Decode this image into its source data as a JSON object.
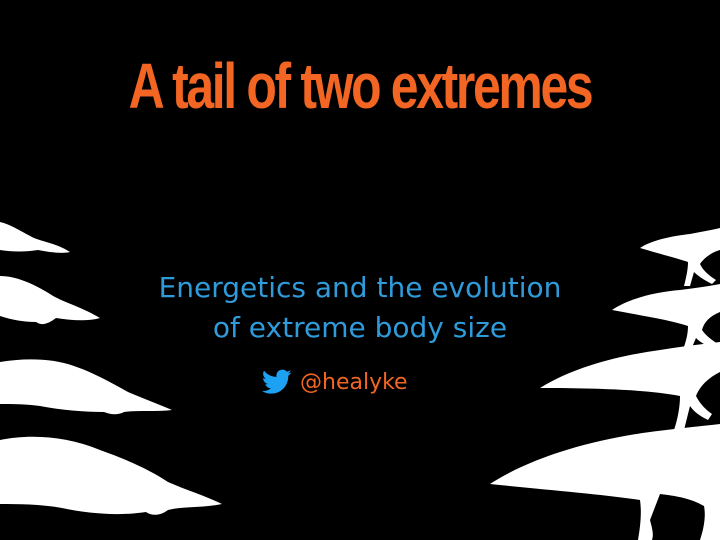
{
  "slide": {
    "title": "A tail of two extremes",
    "subtitle_line1": "Energetics and the evolution",
    "subtitle_line2": "of extreme body size",
    "handle": "@healyke"
  },
  "colors": {
    "background": "#000000",
    "title": "#F26522",
    "subtitle": "#2F9BDB",
    "handle": "#F26522",
    "twitter_bird": "#1DA1F2",
    "silhouettes": "#FFFFFF"
  },
  "icons": {
    "twitter": "twitter-bird-icon",
    "left_group": "whale-silhouette-icon",
    "right_group": "theropod-dinosaur-silhouette-icon"
  }
}
